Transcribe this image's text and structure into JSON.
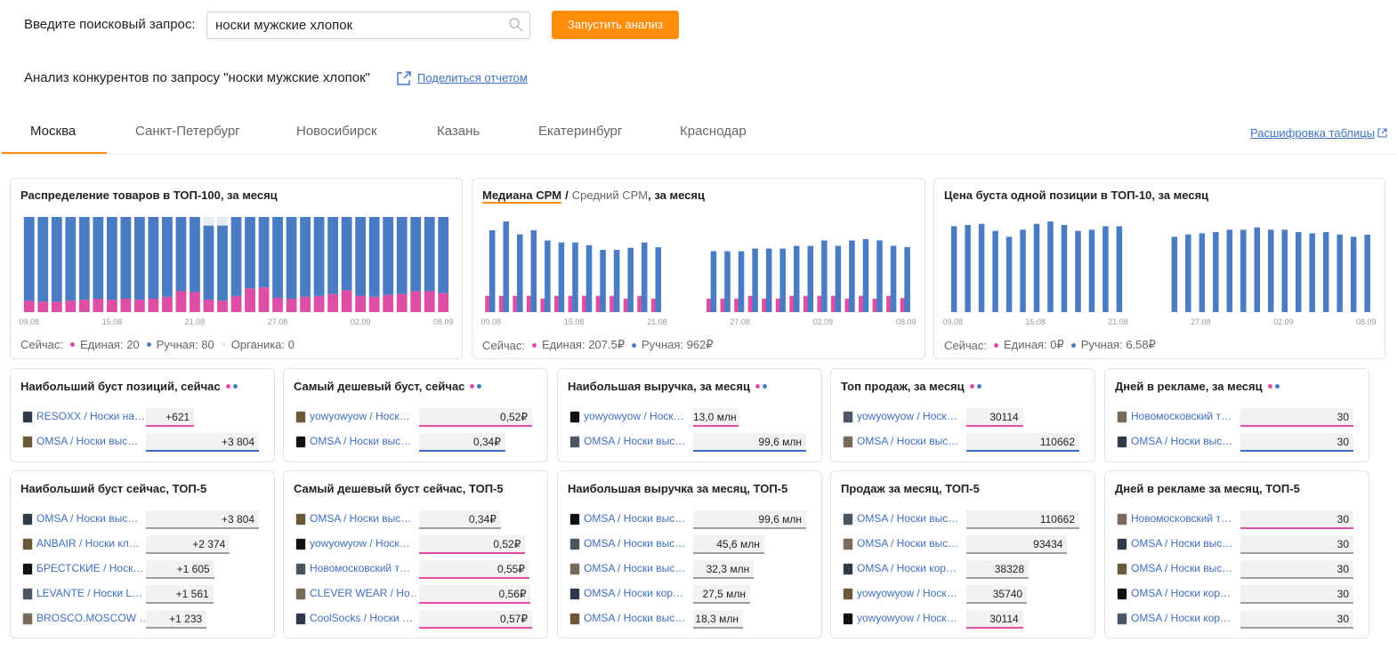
{
  "search": {
    "label": "Введите поисковый запрос:",
    "query": "носки мужские хлопок",
    "button": "Запустить анализ"
  },
  "report": {
    "title": "Анализ конкурентов по запросу \"носки мужские хлопок\"",
    "share": "Поделиться отчетом"
  },
  "tabs": {
    "items": [
      "Москва",
      "Санкт-Петербург",
      "Новосибирск",
      "Казань",
      "Екатеринбург",
      "Краснодар"
    ],
    "active": 0,
    "link": "Расшифровка таблицы"
  },
  "chart_data": [
    {
      "type": "stacked_bar",
      "title_parts": [
        "Распределение товаров в ТОП-100, за месяц"
      ],
      "categories": [
        "09.08",
        null,
        null,
        null,
        null,
        null,
        "15.08",
        null,
        null,
        null,
        null,
        null,
        "21.08",
        null,
        null,
        null,
        null,
        null,
        "27.08",
        null,
        null,
        null,
        null,
        null,
        "02.09",
        null,
        null,
        null,
        null,
        null,
        "08.09"
      ],
      "ylim": [
        0,
        100
      ],
      "series": [
        {
          "color": "#de4da6",
          "values": [
            12,
            11,
            11,
            12,
            13,
            14,
            13,
            14,
            13,
            14,
            16,
            22,
            21,
            13,
            12,
            17,
            25,
            26,
            15,
            14,
            16,
            17,
            19,
            23,
            17,
            16,
            18,
            19,
            22,
            22,
            20
          ]
        },
        {
          "color": "#4a7cc3",
          "values": [
            88,
            89,
            89,
            88,
            87,
            86,
            87,
            86,
            87,
            86,
            84,
            78,
            79,
            78,
            79,
            83,
            75,
            74,
            85,
            86,
            84,
            83,
            81,
            77,
            83,
            84,
            82,
            81,
            78,
            78,
            80
          ]
        },
        {
          "color": "#e4ebf1",
          "values": [
            0,
            0,
            0,
            0,
            0,
            0,
            0,
            0,
            0,
            0,
            0,
            0,
            0,
            9,
            9,
            0,
            0,
            0,
            0,
            0,
            0,
            0,
            0,
            0,
            0,
            0,
            0,
            0,
            0,
            0,
            0
          ]
        }
      ],
      "legend": {
        "label": "Сейчас:",
        "items": [
          {
            "text": "Единая: 20",
            "color": "#de4da6"
          },
          {
            "text": "Ручная: 80",
            "color": "#4a7cc3"
          },
          {
            "text": "Органика: 0",
            "color": "#e4ebf1"
          }
        ]
      }
    },
    {
      "type": "grouped_bar",
      "title_parts": [
        "Медиана CPM",
        "/",
        "Средний CPM",
        ", за месяц"
      ],
      "categories": [
        "09.08",
        null,
        null,
        null,
        null,
        null,
        "15.08",
        null,
        null,
        null,
        null,
        null,
        "21.08",
        null,
        null,
        null,
        null,
        null,
        "27.08",
        null,
        null,
        null,
        null,
        null,
        "02.09",
        null,
        null,
        null,
        null,
        null,
        "08.09"
      ],
      "series": [
        {
          "color": "#de4da6",
          "values": [
            240,
            240,
            240,
            240,
            200,
            240,
            240,
            240,
            240,
            240,
            200,
            240,
            200,
            null,
            null,
            null,
            200,
            200,
            200,
            240,
            200,
            200,
            240,
            240,
            240,
            240,
            200,
            240,
            200,
            240,
            207.5
          ]
        },
        {
          "color": "#4a7cc3",
          "values": [
            1210,
            1340,
            1150,
            1210,
            1060,
            1030,
            1030,
            990,
            920,
            920,
            950,
            1030,
            960,
            null,
            null,
            null,
            900,
            900,
            900,
            940,
            940,
            940,
            980,
            980,
            1060,
            980,
            1060,
            1080,
            1060,
            980,
            962
          ]
        }
      ],
      "legend": {
        "label": "Сейчас:",
        "items": [
          {
            "text": "Единая: 207.5₽",
            "color": "#de4da6"
          },
          {
            "text": "Ручная: 962₽",
            "color": "#4a7cc3"
          }
        ]
      }
    },
    {
      "type": "grouped_bar",
      "title_parts": [
        "Цена буста одной позиции в ТОП-10, за месяц"
      ],
      "categories": [
        "09.08",
        null,
        null,
        null,
        null,
        null,
        "15.08",
        null,
        null,
        null,
        null,
        null,
        "21.08",
        null,
        null,
        null,
        null,
        null,
        "27.08",
        null,
        null,
        null,
        null,
        null,
        "02.09",
        null,
        null,
        null,
        null,
        null,
        "08.09"
      ],
      "series": [
        {
          "color": "#de4da6",
          "values": [
            0,
            0,
            0,
            0,
            0,
            0,
            0,
            0,
            0,
            0,
            0,
            0,
            0,
            null,
            null,
            null,
            0,
            0,
            0,
            0,
            0,
            0,
            0,
            0,
            0,
            0,
            0,
            0,
            0,
            0,
            0
          ]
        },
        {
          "color": "#4a7cc3",
          "values": [
            7.3,
            7.4,
            7.5,
            6.9,
            6.4,
            7.0,
            7.5,
            7.7,
            7.4,
            6.9,
            7.0,
            7.3,
            7.3,
            null,
            null,
            null,
            6.4,
            6.6,
            6.7,
            6.8,
            7.0,
            7.0,
            7.2,
            7.0,
            7.0,
            6.8,
            6.7,
            6.8,
            6.6,
            6.4,
            6.58
          ]
        }
      ],
      "legend": {
        "label": "Сейчас:",
        "items": [
          {
            "text": "Единая: 0₽",
            "color": "#de4da6"
          },
          {
            "text": "Ручная: 6.58₽",
            "color": "#4a7cc3"
          }
        ]
      }
    }
  ],
  "widgets_now": [
    {
      "title": "Наибольший буст позиций, сейчас",
      "rows": [
        {
          "name": "RESOXX / Носки на…",
          "value": 621,
          "label": "+621",
          "color": "#de4da6"
        },
        {
          "name": "OMSA / Носки выс…",
          "value": 3804,
          "label": "+3 804",
          "color": "#3a6cc0"
        }
      ]
    },
    {
      "title": "Самый дешевый буст, сейчас",
      "rows": [
        {
          "name": "yowyowyow / Носк…",
          "value": 0.52,
          "label": "0,52₽",
          "color": "#de4da6"
        },
        {
          "name": "OMSA / Носки выс…",
          "value": 0.34,
          "label": "0,34₽",
          "color": "#3a6cc0"
        }
      ]
    },
    {
      "title": "Наибольшая выручка, за месяц",
      "rows": [
        {
          "name": "yowyowyow / Носк…",
          "value": 13.0,
          "label": "13,0 млн",
          "color": "#de4da6"
        },
        {
          "name": "OMSA / Носки выс…",
          "value": 99.6,
          "label": "99,6 млн",
          "color": "#3a6cc0"
        }
      ]
    },
    {
      "title": "Топ продаж, за месяц",
      "rows": [
        {
          "name": "yowyowyow / Носк…",
          "value": 30114,
          "color": "#de4da6"
        },
        {
          "name": "OMSA / Носки выс…",
          "value": 110662,
          "color": "#3a6cc0"
        }
      ]
    },
    {
      "title": "Дней в рекламе, за месяц",
      "rows": [
        {
          "name": "Новомосковский т…",
          "value": 30,
          "color": "#de4da6"
        },
        {
          "name": "OMSA / Носки выс…",
          "value": 30,
          "color": "#3a6cc0"
        }
      ]
    }
  ],
  "widgets_top5": [
    {
      "title": "Наибольший буст сейчас, ТОП-5",
      "rows": [
        {
          "name": "OMSA / Носки выс…",
          "value": 3804,
          "label": "+3 804",
          "color": "#9e9e9e"
        },
        {
          "name": "ANBAIR / Носки кл…",
          "value": 2374,
          "label": "+2 374",
          "color": "#9e9e9e"
        },
        {
          "name": "БРЕСТСКИЕ / Носк…",
          "value": 1605,
          "label": "+1 605",
          "color": "#9e9e9e"
        },
        {
          "name": "LEVANTE / Носки L…",
          "value": 1561,
          "label": "+1 561",
          "color": "#9e9e9e"
        },
        {
          "name": "BROSCO.MOSCOW …",
          "value": 1233,
          "label": "+1 233",
          "color": "#9e9e9e"
        }
      ]
    },
    {
      "title": "Самый дешевый буст сейчас, ТОП-5",
      "rows": [
        {
          "name": "OMSA / Носки выс…",
          "value": 0.34,
          "label": "0,34₽",
          "color": "#9e9e9e"
        },
        {
          "name": "yowyowyow / Носк…",
          "value": 0.52,
          "label": "0,52₽",
          "color": "#de4da6"
        },
        {
          "name": "Новомосковский т…",
          "value": 0.55,
          "label": "0,55₽",
          "color": "#de4da6"
        },
        {
          "name": "CLEVER WEAR / Но…",
          "value": 0.56,
          "label": "0,56₽",
          "color": "#de4da6"
        },
        {
          "name": "CoolSocks / Носки …",
          "value": 0.57,
          "label": "0,57₽",
          "color": "#de4da6"
        }
      ]
    },
    {
      "title": "Наибольшая выручка за месяц, ТОП-5",
      "rows": [
        {
          "name": "OMSA / Носки выс…",
          "value": 99.6,
          "label": "99,6 млн",
          "color": "#9e9e9e"
        },
        {
          "name": "OMSA / Носки выс…",
          "value": 45.6,
          "label": "45,6 млн",
          "color": "#9e9e9e"
        },
        {
          "name": "OMSA / Носки выс…",
          "value": 32.3,
          "label": "32,3 млн",
          "color": "#9e9e9e"
        },
        {
          "name": "OMSA / Носки кор…",
          "value": 27.5,
          "label": "27,5 млн",
          "color": "#9e9e9e"
        },
        {
          "name": "OMSA / Носки выс…",
          "value": 18.3,
          "label": "18,3 млн",
          "color": "#9e9e9e"
        }
      ]
    },
    {
      "title": "Продаж за месяц, ТОП-5",
      "rows": [
        {
          "name": "OMSA / Носки выс…",
          "value": 110662,
          "color": "#9e9e9e"
        },
        {
          "name": "OMSA / Носки выс…",
          "value": 93434,
          "color": "#9e9e9e"
        },
        {
          "name": "OMSA / Носки кор…",
          "value": 38328,
          "color": "#9e9e9e"
        },
        {
          "name": "yowyowyow / Носк…",
          "value": 35740,
          "color": "#9e9e9e"
        },
        {
          "name": "yowyowyow / Носк…",
          "value": 30114,
          "color": "#de4da6"
        }
      ]
    },
    {
      "title": "Дней в рекламе за месяц, ТОП-5",
      "rows": [
        {
          "name": "Новомосковский т…",
          "value": 30,
          "color": "#de4da6"
        },
        {
          "name": "OMSA / Носки выс…",
          "value": 30,
          "color": "#9e9e9e"
        },
        {
          "name": "OMSA / Носки выс…",
          "value": 30,
          "color": "#9e9e9e"
        },
        {
          "name": "OMSA / Носки кор…",
          "value": 30,
          "color": "#9e9e9e"
        },
        {
          "name": "OMSA / Носки кор…",
          "value": 30,
          "color": "#9e9e9e"
        }
      ]
    }
  ]
}
